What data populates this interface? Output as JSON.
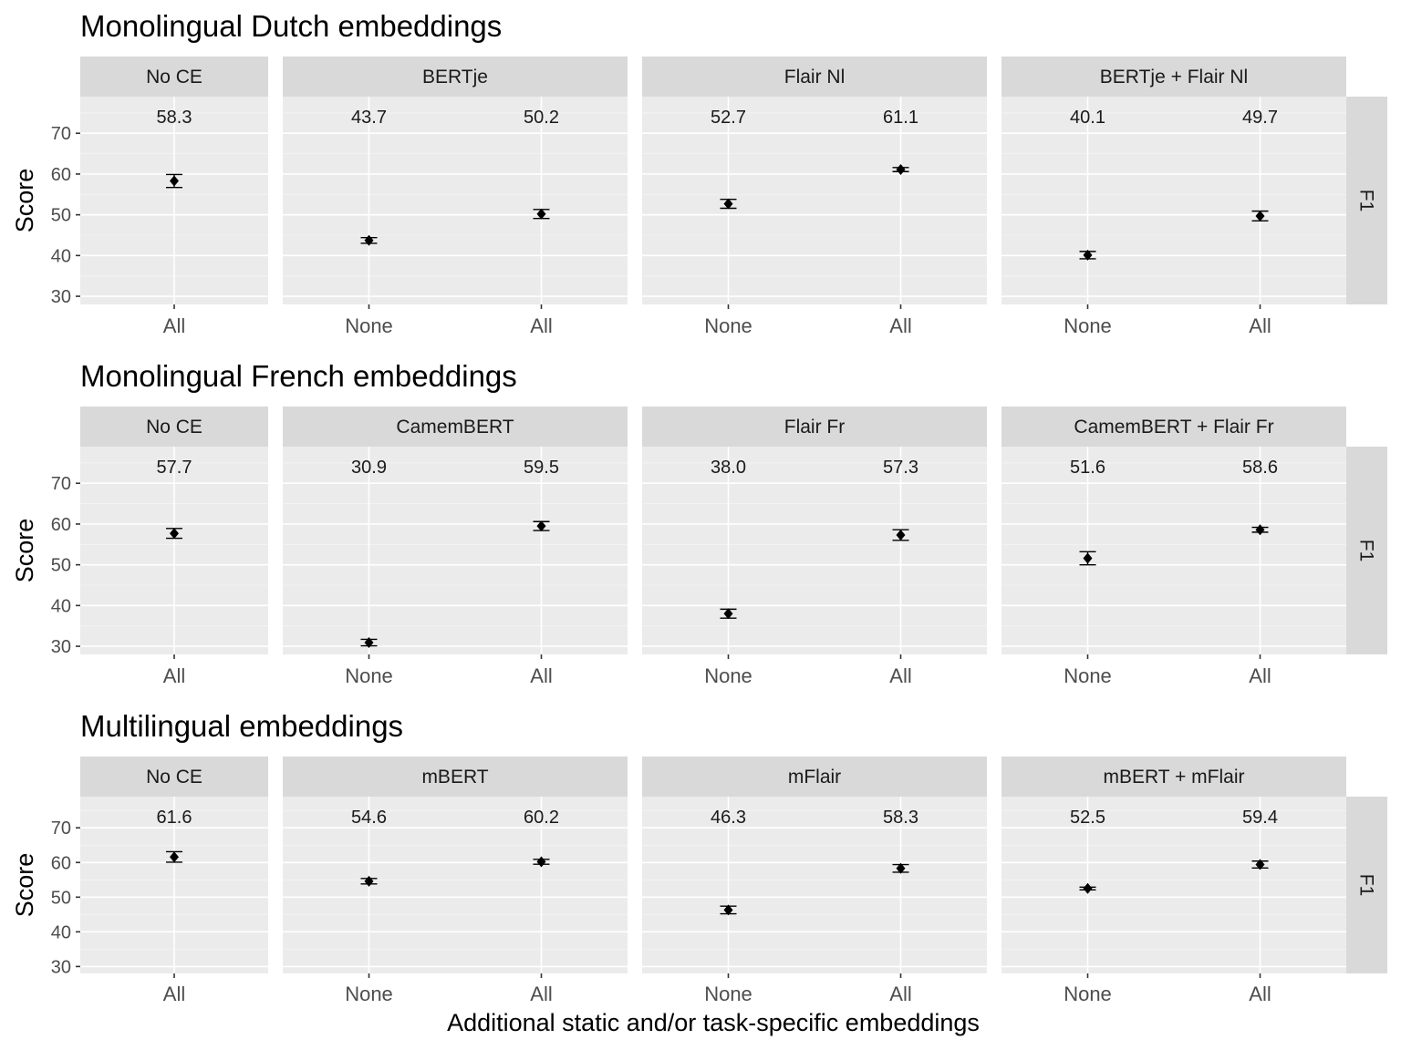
{
  "chart_data": {
    "type": "scatter",
    "xlabel": "Additional static and/or task-specific embeddings",
    "ylabel": "Score",
    "ylim": [
      28,
      79
    ],
    "yticks": [
      30,
      40,
      50,
      60,
      70
    ],
    "marker": "diamond with error bars",
    "grid": true,
    "rows": [
      {
        "title": "Monolingual Dutch embeddings",
        "facet_label": "F1",
        "panels": [
          {
            "strip": "No CE",
            "points": [
              {
                "x": "All",
                "y": 58.3,
                "lo": 56.7,
                "hi": 59.9,
                "label": "58.3"
              }
            ]
          },
          {
            "strip": "BERTje",
            "points": [
              {
                "x": "None",
                "y": 43.7,
                "lo": 43.0,
                "hi": 44.4,
                "label": "43.7"
              },
              {
                "x": "All",
                "y": 50.2,
                "lo": 49.1,
                "hi": 51.3,
                "label": "50.2"
              }
            ]
          },
          {
            "strip": "Flair Nl",
            "points": [
              {
                "x": "None",
                "y": 52.7,
                "lo": 51.6,
                "hi": 53.8,
                "label": "52.7"
              },
              {
                "x": "All",
                "y": 61.1,
                "lo": 60.6,
                "hi": 61.6,
                "label": "61.1"
              }
            ]
          },
          {
            "strip": "BERTje + Flair Nl",
            "points": [
              {
                "x": "None",
                "y": 40.1,
                "lo": 39.2,
                "hi": 41.0,
                "label": "40.1"
              },
              {
                "x": "All",
                "y": 49.7,
                "lo": 48.5,
                "hi": 50.9,
                "label": "49.7"
              }
            ]
          }
        ]
      },
      {
        "title": "Monolingual French embeddings",
        "facet_label": "F1",
        "panels": [
          {
            "strip": "No CE",
            "points": [
              {
                "x": "All",
                "y": 57.7,
                "lo": 56.5,
                "hi": 58.9,
                "label": "57.7"
              }
            ]
          },
          {
            "strip": "CamemBERT",
            "points": [
              {
                "x": "None",
                "y": 30.9,
                "lo": 30.1,
                "hi": 31.7,
                "label": "30.9"
              },
              {
                "x": "All",
                "y": 59.5,
                "lo": 58.4,
                "hi": 60.6,
                "label": "59.5"
              }
            ]
          },
          {
            "strip": "Flair Fr",
            "points": [
              {
                "x": "None",
                "y": 38.0,
                "lo": 36.9,
                "hi": 39.1,
                "label": "38.0"
              },
              {
                "x": "All",
                "y": 57.3,
                "lo": 56.0,
                "hi": 58.6,
                "label": "57.3"
              }
            ]
          },
          {
            "strip": "CamemBERT + Flair Fr",
            "points": [
              {
                "x": "None",
                "y": 51.6,
                "lo": 50.0,
                "hi": 53.2,
                "label": "51.6"
              },
              {
                "x": "All",
                "y": 58.6,
                "lo": 58.0,
                "hi": 59.2,
                "label": "58.6"
              }
            ]
          }
        ]
      },
      {
        "title": "Multilingual embeddings",
        "facet_label": "F1",
        "panels": [
          {
            "strip": "No CE",
            "points": [
              {
                "x": "All",
                "y": 61.6,
                "lo": 60.1,
                "hi": 63.1,
                "label": "61.6"
              }
            ]
          },
          {
            "strip": "mBERT",
            "points": [
              {
                "x": "None",
                "y": 54.6,
                "lo": 53.8,
                "hi": 55.4,
                "label": "54.6"
              },
              {
                "x": "All",
                "y": 60.2,
                "lo": 59.5,
                "hi": 60.9,
                "label": "60.2"
              }
            ]
          },
          {
            "strip": "mFlair",
            "points": [
              {
                "x": "None",
                "y": 46.3,
                "lo": 45.2,
                "hi": 47.4,
                "label": "46.3"
              },
              {
                "x": "All",
                "y": 58.3,
                "lo": 57.2,
                "hi": 59.4,
                "label": "58.3"
              }
            ]
          },
          {
            "strip": "mBERT + mFlair",
            "points": [
              {
                "x": "None",
                "y": 52.5,
                "lo": 52.1,
                "hi": 52.9,
                "label": "52.5"
              },
              {
                "x": "All",
                "y": 59.4,
                "lo": 58.4,
                "hi": 60.4,
                "label": "59.4"
              }
            ]
          }
        ]
      }
    ]
  }
}
